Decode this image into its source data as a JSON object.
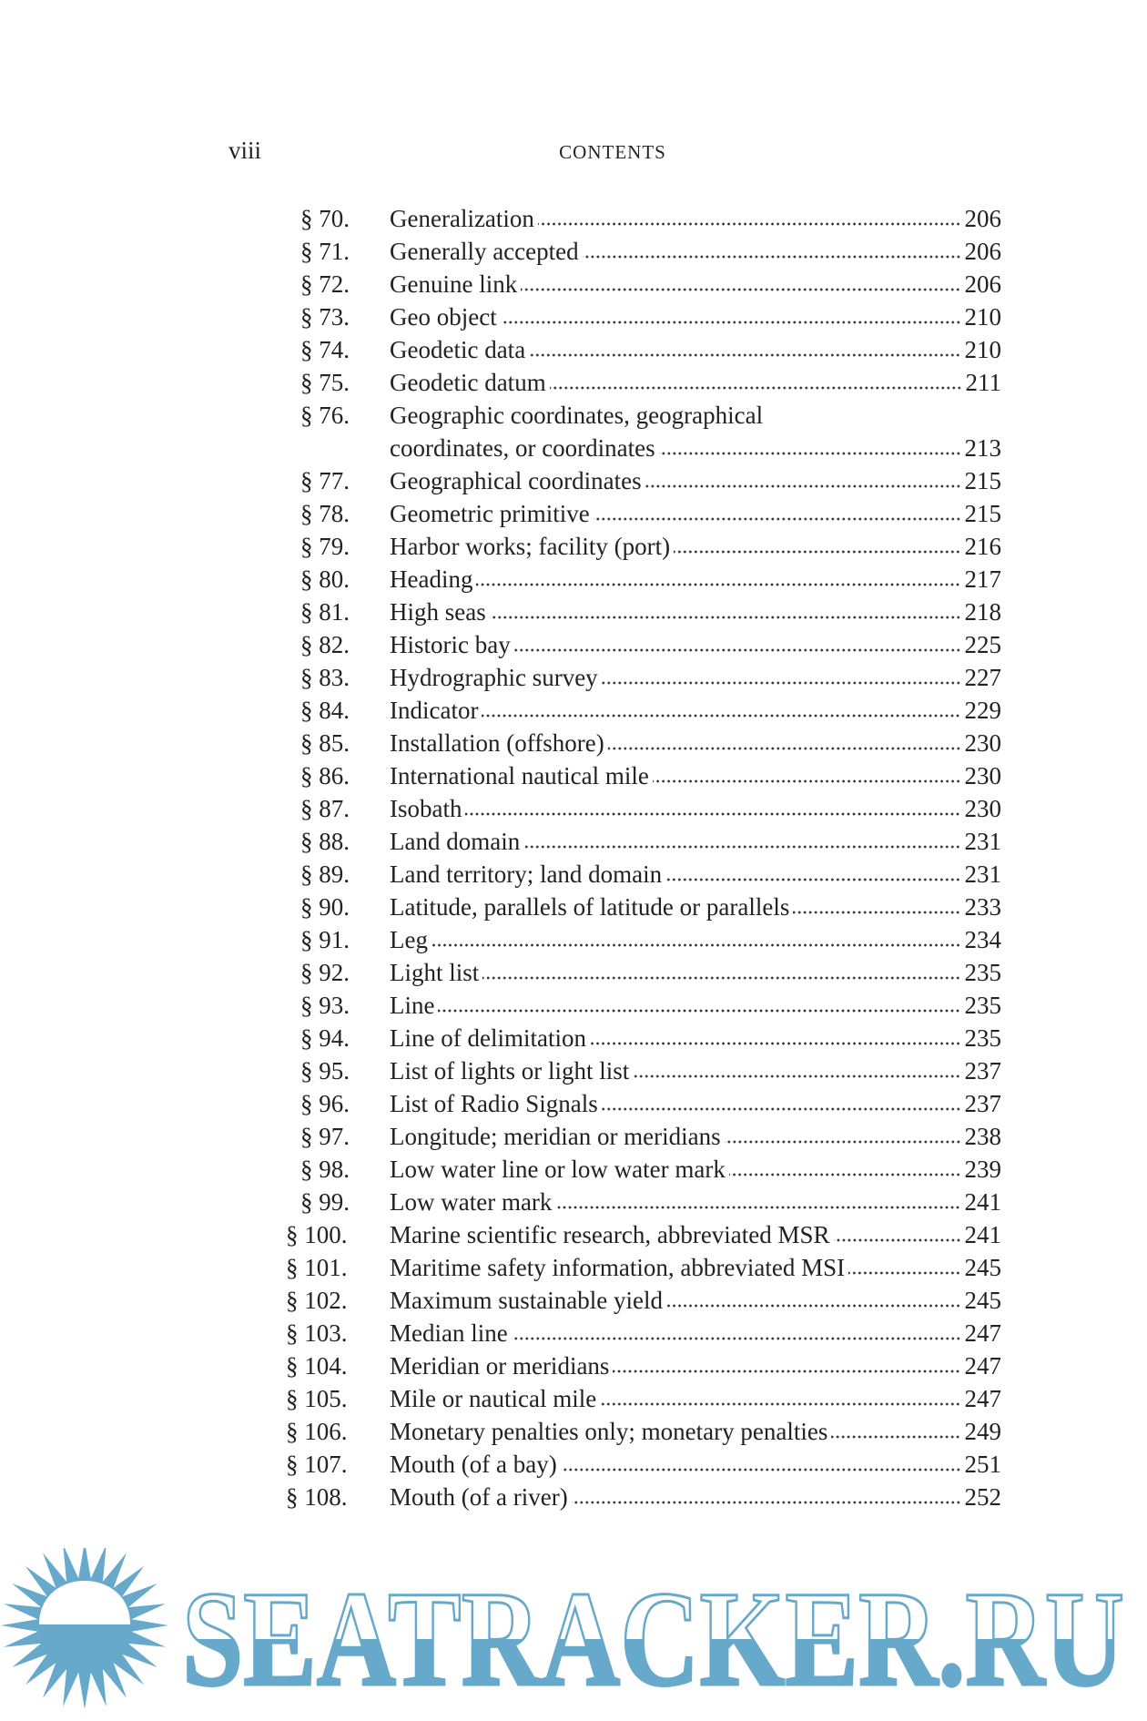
{
  "header": {
    "folio": "viii",
    "running_title": "CONTENTS"
  },
  "entries": [
    {
      "num": "§ 70.",
      "title": "Generalization",
      "page": "206"
    },
    {
      "num": "§ 71.",
      "title": "Generally accepted",
      "page": "206"
    },
    {
      "num": "§ 72.",
      "title": "Genuine link",
      "page": "206"
    },
    {
      "num": "§ 73.",
      "title": "Geo object",
      "page": "210"
    },
    {
      "num": "§ 74.",
      "title": "Geodetic data",
      "page": "210"
    },
    {
      "num": "§ 75.",
      "title": "Geodetic datum",
      "page": "211"
    },
    {
      "num": "§ 76.",
      "title": "Geographic coordinates, geographical",
      "cont": "coordinates, or coordinates",
      "page": "213"
    },
    {
      "num": "§ 77.",
      "title": "Geographical coordinates",
      "page": "215"
    },
    {
      "num": "§ 78.",
      "title": "Geometric primitive",
      "page": "215"
    },
    {
      "num": "§ 79.",
      "title": "Harbor works; facility (port)",
      "page": "216"
    },
    {
      "num": "§ 80.",
      "title": "Heading",
      "page": "217"
    },
    {
      "num": "§ 81.",
      "title": "High seas",
      "page": "218"
    },
    {
      "num": "§ 82.",
      "title": "Historic bay",
      "page": "225"
    },
    {
      "num": "§ 83.",
      "title": "Hydrographic survey",
      "page": "227"
    },
    {
      "num": "§ 84.",
      "title": "Indicator",
      "page": "229"
    },
    {
      "num": "§ 85.",
      "title": "Installation (offshore)",
      "page": "230"
    },
    {
      "num": "§ 86.",
      "title": "International nautical mile",
      "page": "230"
    },
    {
      "num": "§ 87.",
      "title": "Isobath",
      "page": "230"
    },
    {
      "num": "§ 88.",
      "title": "Land domain",
      "page": "231"
    },
    {
      "num": "§ 89.",
      "title": "Land territory; land domain",
      "page": "231"
    },
    {
      "num": "§ 90.",
      "title": "Latitude, parallels of latitude or parallels",
      "page": "233"
    },
    {
      "num": "§ 91.",
      "title": "Leg",
      "page": "234"
    },
    {
      "num": "§ 92.",
      "title": "Light list",
      "page": "235"
    },
    {
      "num": "§ 93.",
      "title": "Line",
      "page": "235"
    },
    {
      "num": "§ 94.",
      "title": "Line of delimitation",
      "page": "235"
    },
    {
      "num": "§ 95.",
      "title": "List of lights or light list",
      "page": "237"
    },
    {
      "num": "§ 96.",
      "title": "List of Radio Signals",
      "page": "237"
    },
    {
      "num": "§ 97.",
      "title": "Longitude; meridian or meridians",
      "page": "238"
    },
    {
      "num": "§ 98.",
      "title": "Low water line or low water mark",
      "page": "239"
    },
    {
      "num": "§ 99.",
      "title": "Low water mark",
      "page": "241"
    },
    {
      "num": "§ 100.",
      "title": "Marine scientific research, abbreviated MSR",
      "page": "241"
    },
    {
      "num": "§ 101.",
      "title": "Maritime safety information, abbreviated MSI",
      "page": "245"
    },
    {
      "num": "§ 102.",
      "title": "Maximum sustainable yield",
      "page": "245"
    },
    {
      "num": "§ 103.",
      "title": "Median line",
      "page": "247"
    },
    {
      "num": "§ 104.",
      "title": "Meridian or meridians",
      "page": "247"
    },
    {
      "num": "§ 105.",
      "title": "Mile or nautical mile",
      "page": "247"
    },
    {
      "num": "§ 106.",
      "title": "Monetary penalties only; monetary penalties",
      "page": "249"
    },
    {
      "num": "§ 107.",
      "title": "Mouth (of a bay)",
      "page": "251"
    },
    {
      "num": "§ 108.",
      "title": "Mouth (of a river)",
      "page": "252"
    }
  ],
  "watermark": {
    "text": "SEATRACKER.RU",
    "color": "#67a9cb",
    "icon": "sun-icon"
  }
}
